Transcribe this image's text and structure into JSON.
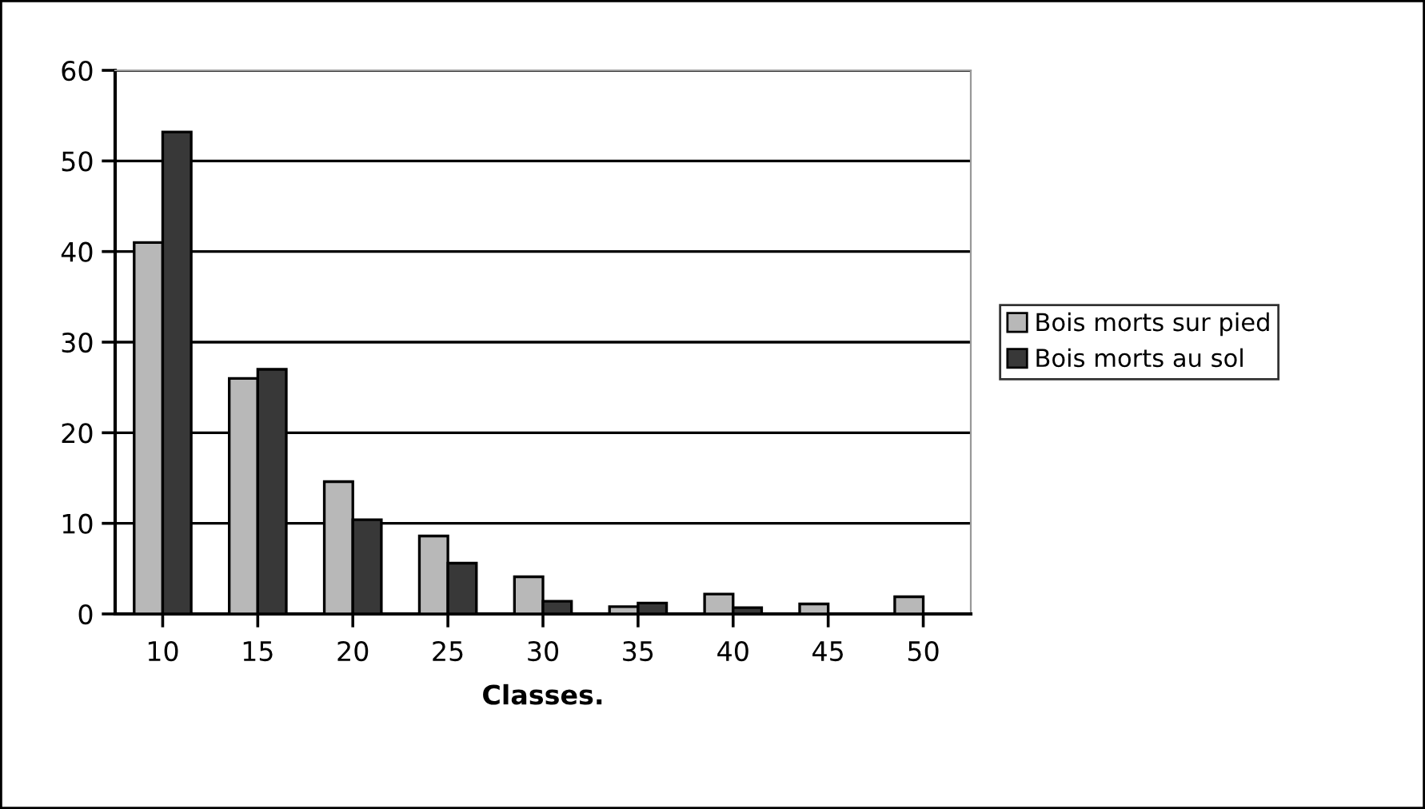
{
  "chart_data": {
    "type": "bar",
    "xlabel": "Classes.",
    "categories": [
      "10",
      "15",
      "20",
      "25",
      "30",
      "35",
      "40",
      "45",
      "50"
    ],
    "series": [
      {
        "name": "Bois morts sur pied",
        "color": "#b8b8b8",
        "values": [
          41,
          26,
          14.6,
          8.6,
          4.1,
          0.8,
          2.2,
          1.1,
          1.9
        ]
      },
      {
        "name": "Bois morts au sol",
        "color": "#383838",
        "values": [
          53.2,
          27,
          10.4,
          5.6,
          1.4,
          1.2,
          0.7,
          null,
          null
        ]
      }
    ],
    "ylim": [
      0,
      60
    ],
    "yticks": [
      0,
      10,
      20,
      30,
      40,
      50,
      60
    ],
    "grid": "y",
    "legend": "right"
  }
}
